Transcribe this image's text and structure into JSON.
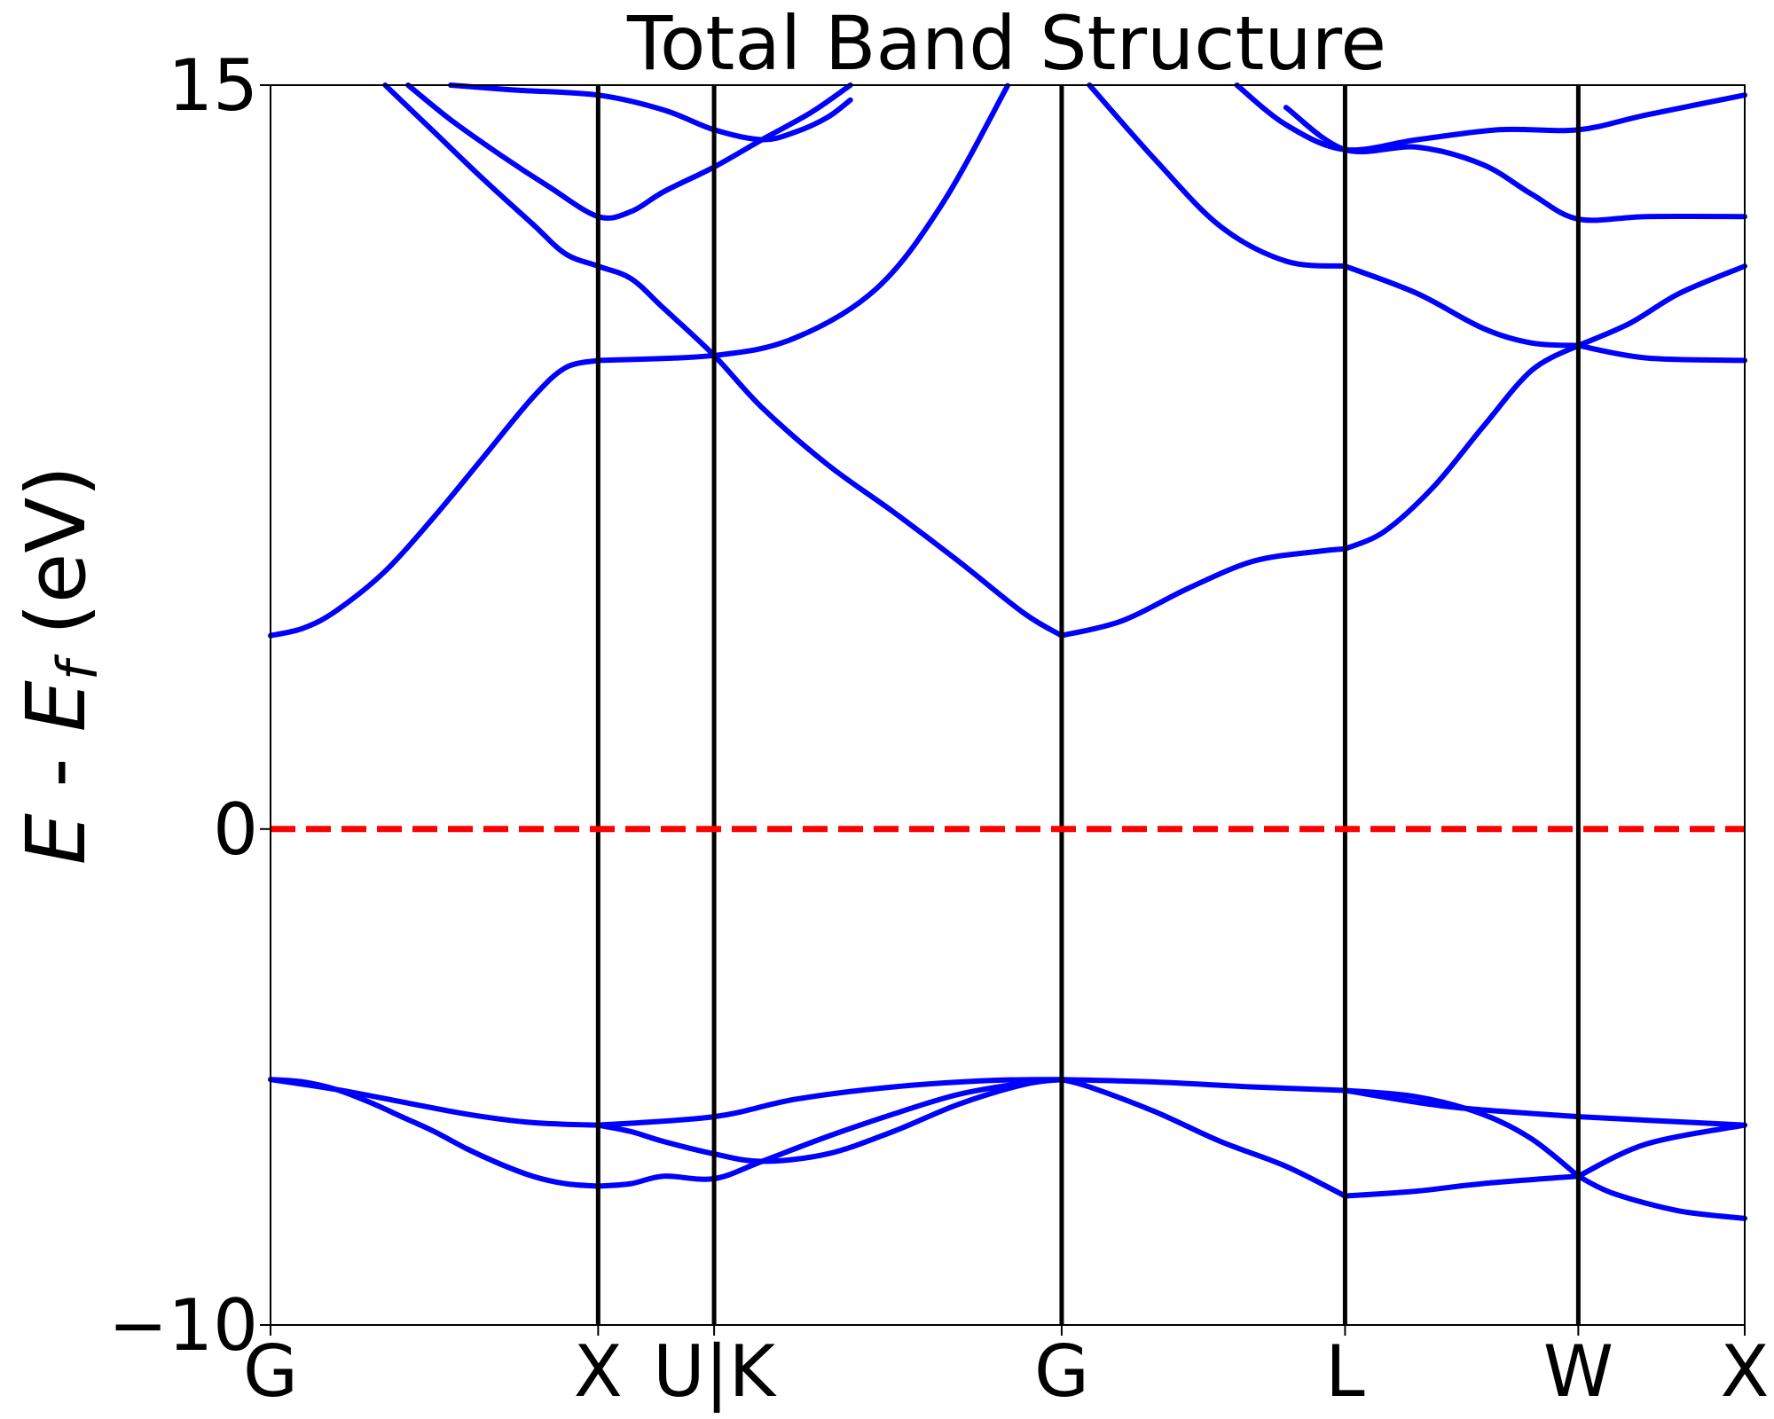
{
  "chart_data": {
    "type": "line",
    "title": "Total Band Structure",
    "ylabel": "E - E_f (eV)",
    "ylabel_parts": {
      "e": "E",
      "sep": " - ",
      "ef": "E",
      "sub": "f",
      "unit": "  (eV)"
    },
    "xlabel": "",
    "ylim": [
      -10,
      15
    ],
    "xlim": [
      0,
      4.5
    ],
    "yticks": [
      {
        "value": 15,
        "label": "15"
      },
      {
        "value": 0,
        "label": "0"
      },
      {
        "value": -10,
        "label": "−10"
      }
    ],
    "kpoints": [
      {
        "label": "G",
        "x": 0
      },
      {
        "label": "X",
        "x": 1.0
      },
      {
        "label": "U|K",
        "x": 1.354
      },
      {
        "label": "G",
        "x": 2.415
      },
      {
        "label": "L",
        "x": 3.28
      },
      {
        "label": "W",
        "x": 3.992
      },
      {
        "label": "X",
        "x": 4.5
      }
    ],
    "fermi_level": {
      "y": 0,
      "color": "#ff0000",
      "style": "dashed"
    },
    "band_color": "#0000ff",
    "grid": false,
    "legend": "none",
    "series": [
      {
        "x": [
          0,
          0.1,
          0.2,
          0.3,
          0.4,
          0.5,
          0.6,
          0.7,
          0.8,
          0.9,
          1.0
        ],
        "y": [
          -5.05,
          -5.1,
          -5.25,
          -5.5,
          -5.8,
          -6.1,
          -6.45,
          -6.75,
          -7.0,
          -7.15,
          -7.2
        ]
      },
      {
        "x": [
          1.0,
          1.1,
          1.2,
          1.354,
          1.5,
          1.7,
          1.9,
          2.1,
          2.3,
          2.415
        ],
        "y": [
          -7.2,
          -7.15,
          -7.0,
          -7.05,
          -6.7,
          -6.2,
          -5.75,
          -5.35,
          -5.12,
          -5.05
        ]
      },
      {
        "x": [
          2.415,
          2.5,
          2.7,
          2.9,
          3.1,
          3.28
        ],
        "y": [
          -5.05,
          -5.2,
          -5.7,
          -6.3,
          -6.8,
          -7.4
        ]
      },
      {
        "x": [
          3.28,
          3.5,
          3.7,
          3.992
        ],
        "y": [
          -7.4,
          -7.3,
          -7.15,
          -7.0
        ]
      },
      {
        "x": [
          3.992,
          4.1,
          4.3,
          4.5
        ],
        "y": [
          -7.0,
          -7.35,
          -7.7,
          -7.85
        ]
      },
      {
        "x": [
          0,
          0.2,
          0.4,
          0.6,
          0.8,
          1.0
        ],
        "y": [
          -5.05,
          -5.25,
          -5.5,
          -5.75,
          -5.92,
          -5.97
        ]
      },
      {
        "x": [
          1.0,
          1.1,
          1.2,
          1.354,
          1.5,
          1.7,
          1.9,
          2.1,
          2.3,
          2.415
        ],
        "y": [
          -5.97,
          -6.1,
          -6.3,
          -6.55,
          -6.7,
          -6.55,
          -6.1,
          -5.55,
          -5.15,
          -5.05
        ]
      },
      {
        "x": [
          1.0,
          1.354,
          1.6,
          1.9,
          2.2,
          2.415
        ],
        "y": [
          -5.97,
          -5.8,
          -5.45,
          -5.2,
          -5.07,
          -5.05
        ]
      },
      {
        "x": [
          2.415,
          2.7,
          3.0,
          3.28
        ],
        "y": [
          -5.05,
          -5.1,
          -5.2,
          -5.27
        ]
      },
      {
        "x": [
          3.28,
          3.5,
          3.7,
          3.85,
          3.992
        ],
        "y": [
          -5.27,
          -5.4,
          -5.75,
          -6.25,
          -7.0
        ]
      },
      {
        "x": [
          3.28,
          3.6,
          3.992
        ],
        "y": [
          -5.27,
          -5.6,
          -5.8
        ]
      },
      {
        "x": [
          3.992,
          4.2,
          4.5
        ],
        "y": [
          -7.0,
          -6.35,
          -5.97
        ]
      },
      {
        "x": [
          3.992,
          4.2,
          4.5
        ],
        "y": [
          -5.8,
          -5.87,
          -5.97
        ]
      },
      {
        "x": [
          0,
          0.1,
          0.2,
          0.35,
          0.5,
          0.65,
          0.8,
          0.9,
          1.0
        ],
        "y": [
          3.9,
          4.05,
          4.4,
          5.2,
          6.3,
          7.5,
          8.7,
          9.3,
          9.45
        ]
      },
      {
        "x": [
          1.0,
          1.354,
          1.6,
          1.85,
          2.05,
          2.25
        ],
        "y": [
          9.45,
          9.55,
          9.9,
          10.9,
          12.6,
          14.99
        ]
      },
      {
        "x": [
          0.35,
          0.5,
          0.65,
          0.8,
          0.9,
          1.0,
          1.1,
          1.2,
          1.354,
          1.5,
          1.7,
          1.9,
          2.1,
          2.3,
          2.415
        ],
        "y": [
          15.0,
          14.05,
          13.1,
          12.2,
          11.6,
          11.35,
          11.1,
          10.5,
          9.55,
          8.5,
          7.35,
          6.4,
          5.4,
          4.35,
          3.9
        ]
      },
      {
        "x": [
          2.415,
          2.6,
          2.8,
          3.0,
          3.2,
          3.28
        ],
        "y": [
          3.9,
          4.2,
          4.85,
          5.4,
          5.6,
          5.65
        ]
      },
      {
        "x": [
          3.28,
          3.4,
          3.55,
          3.7,
          3.85,
          3.992
        ],
        "y": [
          5.65,
          6.0,
          6.9,
          8.1,
          9.25,
          9.75
        ]
      },
      {
        "x": [
          3.992,
          4.15,
          4.3,
          4.5
        ],
        "y": [
          9.75,
          10.2,
          10.8,
          11.35
        ]
      },
      {
        "x": [
          3.992,
          4.2,
          4.5
        ],
        "y": [
          9.75,
          9.5,
          9.45
        ]
      },
      {
        "x": [
          2.5,
          2.7,
          2.9,
          3.1,
          3.28
        ],
        "y": [
          15.0,
          13.5,
          12.15,
          11.45,
          11.35
        ]
      },
      {
        "x": [
          3.28,
          3.5,
          3.7,
          3.85,
          3.992
        ],
        "y": [
          11.35,
          10.8,
          10.1,
          9.8,
          9.75
        ]
      },
      {
        "x": [
          0.42,
          0.55,
          0.7,
          0.85,
          1.0,
          1.1,
          1.2,
          1.354,
          1.5,
          1.65,
          1.77
        ],
        "y": [
          15.0,
          14.3,
          13.6,
          12.95,
          12.35,
          12.45,
          12.85,
          13.35,
          13.9,
          14.45,
          15.0
        ]
      },
      {
        "x": [
          0.55,
          0.75,
          1.0,
          1.2,
          1.354,
          1.5,
          1.6,
          1.7,
          1.77
        ],
        "y": [
          15.0,
          14.9,
          14.8,
          14.5,
          14.1,
          13.9,
          14.05,
          14.35,
          14.7
        ]
      },
      {
        "x": [
          3.1,
          3.28,
          3.5,
          3.7,
          3.85,
          3.992,
          4.2,
          4.5
        ],
        "y": [
          14.55,
          13.7,
          13.75,
          13.4,
          12.8,
          12.3,
          12.35,
          12.35
        ]
      },
      {
        "x": [
          2.95,
          3.1,
          3.28,
          3.5,
          3.75,
          3.992,
          4.2,
          4.5
        ],
        "y": [
          15.0,
          14.2,
          13.7,
          13.9,
          14.1,
          14.1,
          14.4,
          14.8
        ]
      }
    ]
  }
}
